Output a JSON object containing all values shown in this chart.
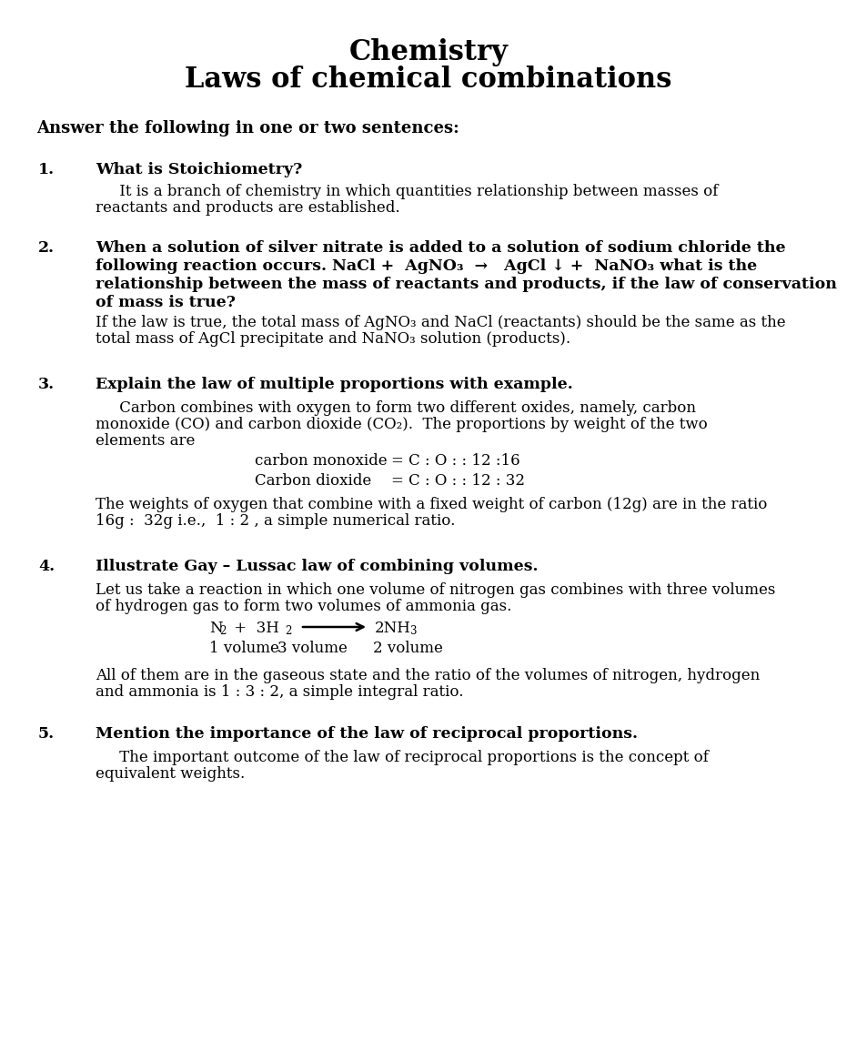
{
  "title_line1": "Chemistry",
  "title_line2": "Laws of chemical combinations",
  "section_header": "Answer the following in one or two sentences:",
  "bg_color": "#ffffff",
  "text_color": "#000000",
  "q1_num": "1.",
  "q1_question": "What is Stoichiometry?",
  "q1_answer": [
    "     It is a branch of chemistry in which quantities relationship between masses of",
    "reactants and products are established."
  ],
  "q2_num": "2.",
  "q2_question_lines": [
    "When a solution of silver nitrate is added to a solution of sodium chloride the",
    "following reaction occurs. NaCl +  AgNO₃  →   AgCl ↓ +  NaNO₃ what is the",
    "relationship between the mass of reactants and products, if the law of conservation",
    "of mass is true?"
  ],
  "q2_answer": [
    "If the law is true, the total mass of AgNO₃ and NaCl (reactants) should be the same as the",
    "total mass of AgCl precipitate and NaNO₃ solution (products)."
  ],
  "q3_num": "3.",
  "q3_question": "Explain the law of multiple proportions with example.",
  "q3_answer_pre": [
    "     Carbon combines with oxygen to form two different oxides, namely, carbon",
    "monoxide (CO) and carbon dioxide (CO₂).  The proportions by weight of the two",
    "elements are"
  ],
  "q3_co_label": "carbon monoxide",
  "q3_co_eq": "= C : O : : 12 :16",
  "q3_co2_label": "Carbon dioxide",
  "q3_co2_eq": "= C : O : : 12 : 32",
  "q3_answer_post": [
    "The weights of oxygen that combine with a fixed weight of carbon (12g) are in the ratio",
    "16g :  32g i.e.,  1 : 2 , a simple numerical ratio."
  ],
  "q4_num": "4.",
  "q4_question": "Illustrate Gay – Lussac law of combining volumes.",
  "q4_answer_pre": [
    "Let us take a reaction in which one volume of nitrogen gas combines with three volumes",
    "of hydrogen gas to form two volumes of ammonia gas."
  ],
  "q4_eq_line1_a": "N",
  "q4_eq_line1_b": "2",
  "q4_eq_line1_c": " +  3H",
  "q4_eq_line1_d": "2",
  "q4_eq_line1_e": "2NH",
  "q4_eq_line1_f": "3",
  "q4_vol_line": "1 volume    3 volume       2 volume",
  "q4_answer_post": [
    "All of them are in the gaseous state and the ratio of the volumes of nitrogen, hydrogen",
    "and ammonia is 1 : 3 : 2, a simple integral ratio."
  ],
  "q5_num": "5.",
  "q5_question": "Mention the importance of the law of reciprocal proportions.",
  "q5_answer": [
    "     The important outcome of the law of reciprocal proportions is the concept of",
    "equivalent weights."
  ],
  "fig_width": 9.42,
  "fig_height": 11.44,
  "dpi": 100
}
